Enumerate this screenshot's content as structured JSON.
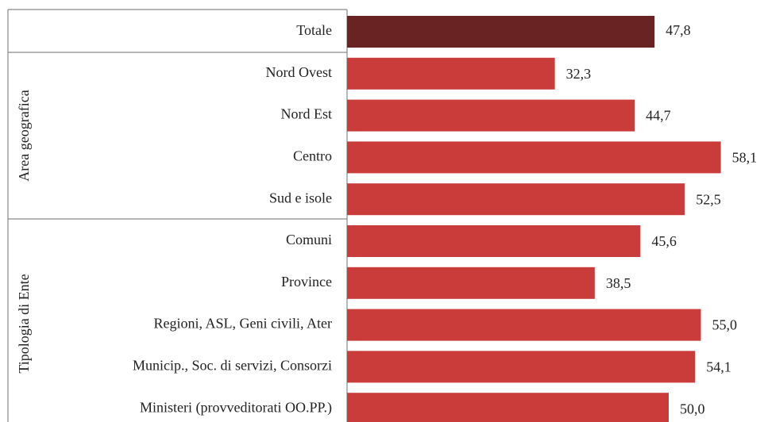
{
  "chart_data": {
    "type": "barh",
    "categories": [
      "Totale",
      "Nord Ovest",
      "Nord Est",
      "Centro",
      "Sud e isole",
      "Comuni",
      "Province",
      "Regioni, ASL, Geni civili, Ater",
      "Municip., Soc. di servizi, Consorzi",
      "Ministeri (provveditorati OO.PP.)"
    ],
    "values": [
      47.8,
      32.3,
      44.7,
      58.1,
      52.5,
      45.6,
      38.5,
      55.0,
      54.1,
      50.0
    ],
    "value_labels": [
      "47,8",
      "32,3",
      "44,7",
      "58,1",
      "52,5",
      "45,6",
      "38,5",
      "55,0",
      "54,1",
      "50,0"
    ],
    "colors": [
      "#6a2323",
      "#c93c3a",
      "#c93c3a",
      "#c93c3a",
      "#c93c3a",
      "#c93c3a",
      "#c93c3a",
      "#c93c3a",
      "#c93c3a",
      "#c93c3a"
    ],
    "group_labels": [
      "Area geografica",
      "Tipologia di Ente"
    ],
    "xlim": [
      0,
      60
    ]
  }
}
